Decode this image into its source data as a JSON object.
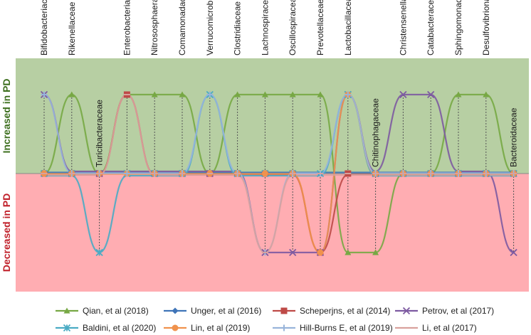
{
  "chart_data": {
    "type": "line",
    "title": "",
    "ylabel_positive": "Increased in PD",
    "ylabel_negative": "Decreased in PD",
    "ylim": [
      -1,
      1
    ],
    "categories": [
      "Bifidobacteriaceae",
      "Rikenellaceae",
      "Turicibacteraceae",
      "Enterobacteriaceae",
      "Nitrososphaeraceae",
      "Comamonadaceae",
      "Verrucomicrobiaceae",
      "Clostridiaceae",
      "Lachnospiraceae",
      "Oscillospiraceae",
      "Prevotellaceae",
      "Lactobacillaceae",
      "Chitinophagaceae",
      "Christensenellaceae",
      "Catabacteraceae",
      "Sphingomonadaceae",
      "Desulfovibrionaceae",
      "Bacteroidaceae"
    ],
    "series": [
      {
        "name": "Qian, et al (2018)",
        "color": "#77a844",
        "marker": "triangle",
        "values": [
          0,
          1,
          0,
          1,
          1,
          1,
          0,
          1,
          1,
          1,
          1,
          -1,
          -1,
          0,
          0,
          1,
          1,
          0
        ]
      },
      {
        "name": "Unger, et al (2016)",
        "color": "#3f74b8",
        "marker": "diamond",
        "values": [
          0,
          0,
          0,
          0,
          0,
          0,
          0,
          0,
          0,
          0,
          0,
          0,
          0,
          0,
          0,
          0,
          0,
          0
        ]
      },
      {
        "name": "Scheperjns, et al (2014)",
        "color": "#be4a47",
        "marker": "square",
        "values": [
          0,
          0,
          0,
          1,
          0,
          0,
          0,
          0,
          0,
          0,
          -1,
          0,
          0,
          0,
          0,
          0,
          0,
          0
        ]
      },
      {
        "name": "Petrov, et al (2017)",
        "color": "#7d5aa1",
        "marker": "x",
        "values": [
          1,
          0,
          0,
          0,
          0,
          0,
          0,
          0,
          -1,
          -1,
          -1,
          1,
          0,
          1,
          1,
          0,
          0,
          -1
        ]
      },
      {
        "name": "Baldini, et al (2020)",
        "color": "#4aabc4",
        "marker": "star",
        "values": [
          0,
          0,
          -1,
          0,
          0,
          0,
          1,
          0,
          0,
          0,
          0,
          1,
          0,
          0,
          0,
          0,
          0,
          0
        ]
      },
      {
        "name": "Lin, et al (2019)",
        "color": "#f0924d",
        "marker": "circle",
        "values": [
          0,
          0,
          0,
          0,
          0,
          0,
          0,
          0,
          0,
          0,
          -1,
          1,
          0,
          0,
          0,
          0,
          0,
          0
        ]
      },
      {
        "name": "Hill-Burns E, et al (2019)",
        "color": "#98b4da",
        "marker": "plus",
        "values": [
          1,
          0,
          0,
          0,
          0,
          0,
          1,
          0,
          -1,
          0,
          0,
          1,
          0,
          0,
          0,
          0,
          0,
          0
        ]
      },
      {
        "name": "Li, et al (2017)",
        "color": "#d9a19d",
        "marker": "dash",
        "values": [
          0,
          0,
          0,
          1,
          0,
          0,
          0,
          0,
          -1,
          0,
          0,
          0,
          0,
          0,
          0,
          0,
          0,
          0
        ]
      }
    ],
    "legend": "bottom",
    "background": {
      "increased": "#b7cfa3",
      "decreased": "#ffadb2",
      "increased_text": "#3d6f1e",
      "decreased_text": "#c0202a"
    }
  }
}
